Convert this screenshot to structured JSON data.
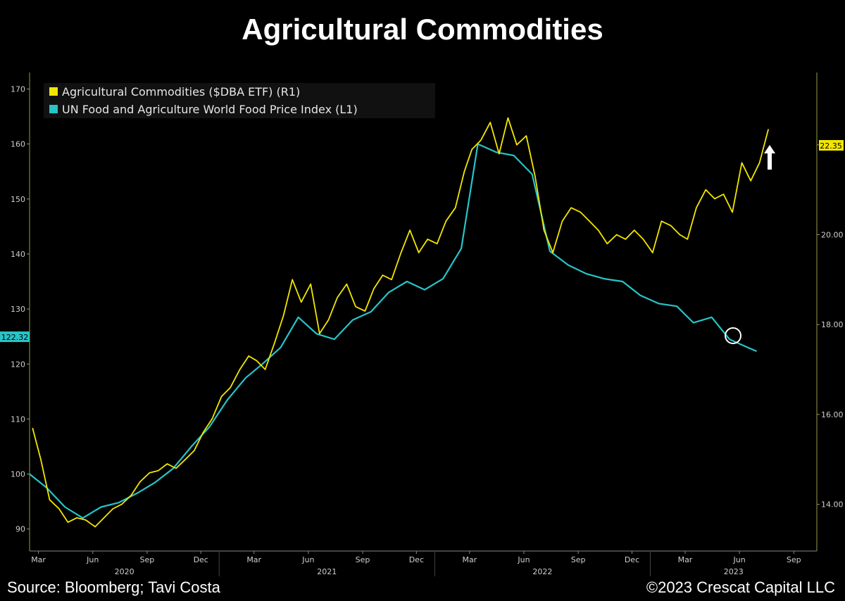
{
  "header": {
    "title": "Agricultural Commodities"
  },
  "footer": {
    "source": "Source: Bloomberg; Tavi Costa",
    "copyright": "©2023 Crescat Capital LLC"
  },
  "colors": {
    "background": "#000000",
    "dba_series": "#f2e600",
    "fao_series": "#27c4c8",
    "axis": "#9a9a4a"
  },
  "chart_data": {
    "type": "line",
    "title": "Agricultural Commodities",
    "x_axis": {
      "range": [
        "2020-02-15",
        "2023-10-10"
      ],
      "month_ticks": [
        {
          "label": "Mar",
          "date": "2020-03-01"
        },
        {
          "label": "Jun",
          "date": "2020-06-01"
        },
        {
          "label": "Sep",
          "date": "2020-09-01"
        },
        {
          "label": "Dec",
          "date": "2020-12-01"
        },
        {
          "label": "Mar",
          "date": "2021-03-01"
        },
        {
          "label": "Jun",
          "date": "2021-06-01"
        },
        {
          "label": "Sep",
          "date": "2021-09-01"
        },
        {
          "label": "Dec",
          "date": "2021-12-01"
        },
        {
          "label": "Mar",
          "date": "2022-03-01"
        },
        {
          "label": "Jun",
          "date": "2022-06-01"
        },
        {
          "label": "Sep",
          "date": "2022-09-01"
        },
        {
          "label": "Dec",
          "date": "2022-12-01"
        },
        {
          "label": "Mar",
          "date": "2023-03-01"
        },
        {
          "label": "Jun",
          "date": "2023-06-01"
        },
        {
          "label": "Sep",
          "date": "2023-09-01"
        }
      ],
      "years": [
        "2020",
        "2021",
        "2022",
        "2023"
      ]
    },
    "left_axis": {
      "ticks": [
        90,
        100,
        110,
        120,
        130,
        140,
        150,
        160,
        170
      ],
      "range": [
        86,
        173
      ]
    },
    "right_axis": {
      "ticks": [
        14.0,
        16.0,
        18.0,
        20.0,
        22.0
      ],
      "range": [
        12.96,
        23.61
      ]
    },
    "legend": {
      "placement": "top-left",
      "entries": [
        "Agricultural Commodities ($DBA ETF) (R1)",
        "UN Food and Agriculture World Food Price Index (L1)"
      ]
    },
    "last_value_labels": {
      "dba": "22.35",
      "fao": "122.32"
    },
    "series": [
      {
        "name": "UN Food and Agriculture World Food Price Index (L1)",
        "axis": "left",
        "points": [
          [
            "2020-02-15",
            100.0
          ],
          [
            "2020-03-15",
            97.5
          ],
          [
            "2020-04-15",
            94.0
          ],
          [
            "2020-05-15",
            92.0
          ],
          [
            "2020-06-15",
            94.0
          ],
          [
            "2020-07-15",
            94.8
          ],
          [
            "2020-08-15",
            96.5
          ],
          [
            "2020-09-15",
            98.5
          ],
          [
            "2020-10-15",
            101.0
          ],
          [
            "2020-11-15",
            105.0
          ],
          [
            "2020-12-15",
            108.5
          ],
          [
            "2021-01-15",
            113.5
          ],
          [
            "2021-02-15",
            117.5
          ],
          [
            "2021-03-15",
            120.0
          ],
          [
            "2021-04-15",
            123.0
          ],
          [
            "2021-05-15",
            128.5
          ],
          [
            "2021-06-15",
            125.5
          ],
          [
            "2021-07-15",
            124.5
          ],
          [
            "2021-08-15",
            128.0
          ],
          [
            "2021-09-15",
            129.5
          ],
          [
            "2021-10-15",
            133.0
          ],
          [
            "2021-11-15",
            135.0
          ],
          [
            "2021-12-15",
            133.5
          ],
          [
            "2022-01-15",
            135.5
          ],
          [
            "2022-02-15",
            141.0
          ],
          [
            "2022-03-15",
            160.0
          ],
          [
            "2022-04-15",
            158.5
          ],
          [
            "2022-05-15",
            157.9
          ],
          [
            "2022-06-15",
            154.5
          ],
          [
            "2022-07-15",
            140.5
          ],
          [
            "2022-08-15",
            138.0
          ],
          [
            "2022-09-15",
            136.4
          ],
          [
            "2022-10-15",
            135.5
          ],
          [
            "2022-11-15",
            135.0
          ],
          [
            "2022-12-15",
            132.5
          ],
          [
            "2023-01-15",
            131.0
          ],
          [
            "2023-02-15",
            130.5
          ],
          [
            "2023-03-15",
            127.5
          ],
          [
            "2023-04-15",
            128.5
          ],
          [
            "2023-05-15",
            124.5
          ],
          [
            "2023-06-15",
            123.0
          ],
          [
            "2023-06-30",
            122.32
          ]
        ]
      },
      {
        "name": "Agricultural Commodities ($DBA ETF) (R1)",
        "axis": "right",
        "points": [
          [
            "2020-02-20",
            15.7
          ],
          [
            "2020-03-05",
            15.0
          ],
          [
            "2020-03-20",
            14.1
          ],
          [
            "2020-04-05",
            13.9
          ],
          [
            "2020-04-20",
            13.6
          ],
          [
            "2020-05-05",
            13.7
          ],
          [
            "2020-05-20",
            13.65
          ],
          [
            "2020-06-05",
            13.5
          ],
          [
            "2020-06-20",
            13.7
          ],
          [
            "2020-07-05",
            13.9
          ],
          [
            "2020-07-20",
            14.0
          ],
          [
            "2020-08-05",
            14.2
          ],
          [
            "2020-08-20",
            14.5
          ],
          [
            "2020-09-05",
            14.7
          ],
          [
            "2020-09-20",
            14.75
          ],
          [
            "2020-10-05",
            14.9
          ],
          [
            "2020-10-20",
            14.8
          ],
          [
            "2020-11-05",
            15.0
          ],
          [
            "2020-11-20",
            15.2
          ],
          [
            "2020-12-05",
            15.6
          ],
          [
            "2020-12-20",
            15.9
          ],
          [
            "2021-01-05",
            16.4
          ],
          [
            "2021-01-20",
            16.6
          ],
          [
            "2021-02-05",
            17.0
          ],
          [
            "2021-02-20",
            17.3
          ],
          [
            "2021-03-05",
            17.2
          ],
          [
            "2021-03-20",
            17.0
          ],
          [
            "2021-04-05",
            17.6
          ],
          [
            "2021-04-20",
            18.2
          ],
          [
            "2021-05-05",
            19.0
          ],
          [
            "2021-05-20",
            18.5
          ],
          [
            "2021-06-05",
            18.9
          ],
          [
            "2021-06-20",
            17.8
          ],
          [
            "2021-07-05",
            18.1
          ],
          [
            "2021-07-20",
            18.6
          ],
          [
            "2021-08-05",
            18.9
          ],
          [
            "2021-08-20",
            18.4
          ],
          [
            "2021-09-05",
            18.3
          ],
          [
            "2021-09-20",
            18.8
          ],
          [
            "2021-10-05",
            19.1
          ],
          [
            "2021-10-20",
            19.0
          ],
          [
            "2021-11-05",
            19.6
          ],
          [
            "2021-11-20",
            20.1
          ],
          [
            "2021-12-05",
            19.6
          ],
          [
            "2021-12-20",
            19.9
          ],
          [
            "2022-01-05",
            19.8
          ],
          [
            "2022-01-20",
            20.3
          ],
          [
            "2022-02-05",
            20.6
          ],
          [
            "2022-02-20",
            21.4
          ],
          [
            "2022-03-05",
            21.9
          ],
          [
            "2022-03-20",
            22.1
          ],
          [
            "2022-04-05",
            22.5
          ],
          [
            "2022-04-20",
            21.8
          ],
          [
            "2022-05-05",
            22.6
          ],
          [
            "2022-05-20",
            22.0
          ],
          [
            "2022-06-05",
            22.2
          ],
          [
            "2022-06-20",
            21.3
          ],
          [
            "2022-07-05",
            20.1
          ],
          [
            "2022-07-20",
            19.6
          ],
          [
            "2022-08-05",
            20.3
          ],
          [
            "2022-08-20",
            20.6
          ],
          [
            "2022-09-05",
            20.5
          ],
          [
            "2022-09-20",
            20.3
          ],
          [
            "2022-10-05",
            20.1
          ],
          [
            "2022-10-20",
            19.8
          ],
          [
            "2022-11-05",
            20.0
          ],
          [
            "2022-11-20",
            19.9
          ],
          [
            "2022-12-05",
            20.1
          ],
          [
            "2022-12-20",
            19.9
          ],
          [
            "2023-01-05",
            19.6
          ],
          [
            "2023-01-20",
            20.3
          ],
          [
            "2023-02-05",
            20.2
          ],
          [
            "2023-02-20",
            20.0
          ],
          [
            "2023-03-05",
            19.9
          ],
          [
            "2023-03-20",
            20.6
          ],
          [
            "2023-04-05",
            21.0
          ],
          [
            "2023-04-20",
            20.8
          ],
          [
            "2023-05-05",
            20.9
          ],
          [
            "2023-05-20",
            20.5
          ],
          [
            "2023-06-05",
            21.6
          ],
          [
            "2023-06-20",
            21.2
          ],
          [
            "2023-07-05",
            21.6
          ],
          [
            "2023-07-20",
            22.35
          ]
        ]
      }
    ]
  }
}
